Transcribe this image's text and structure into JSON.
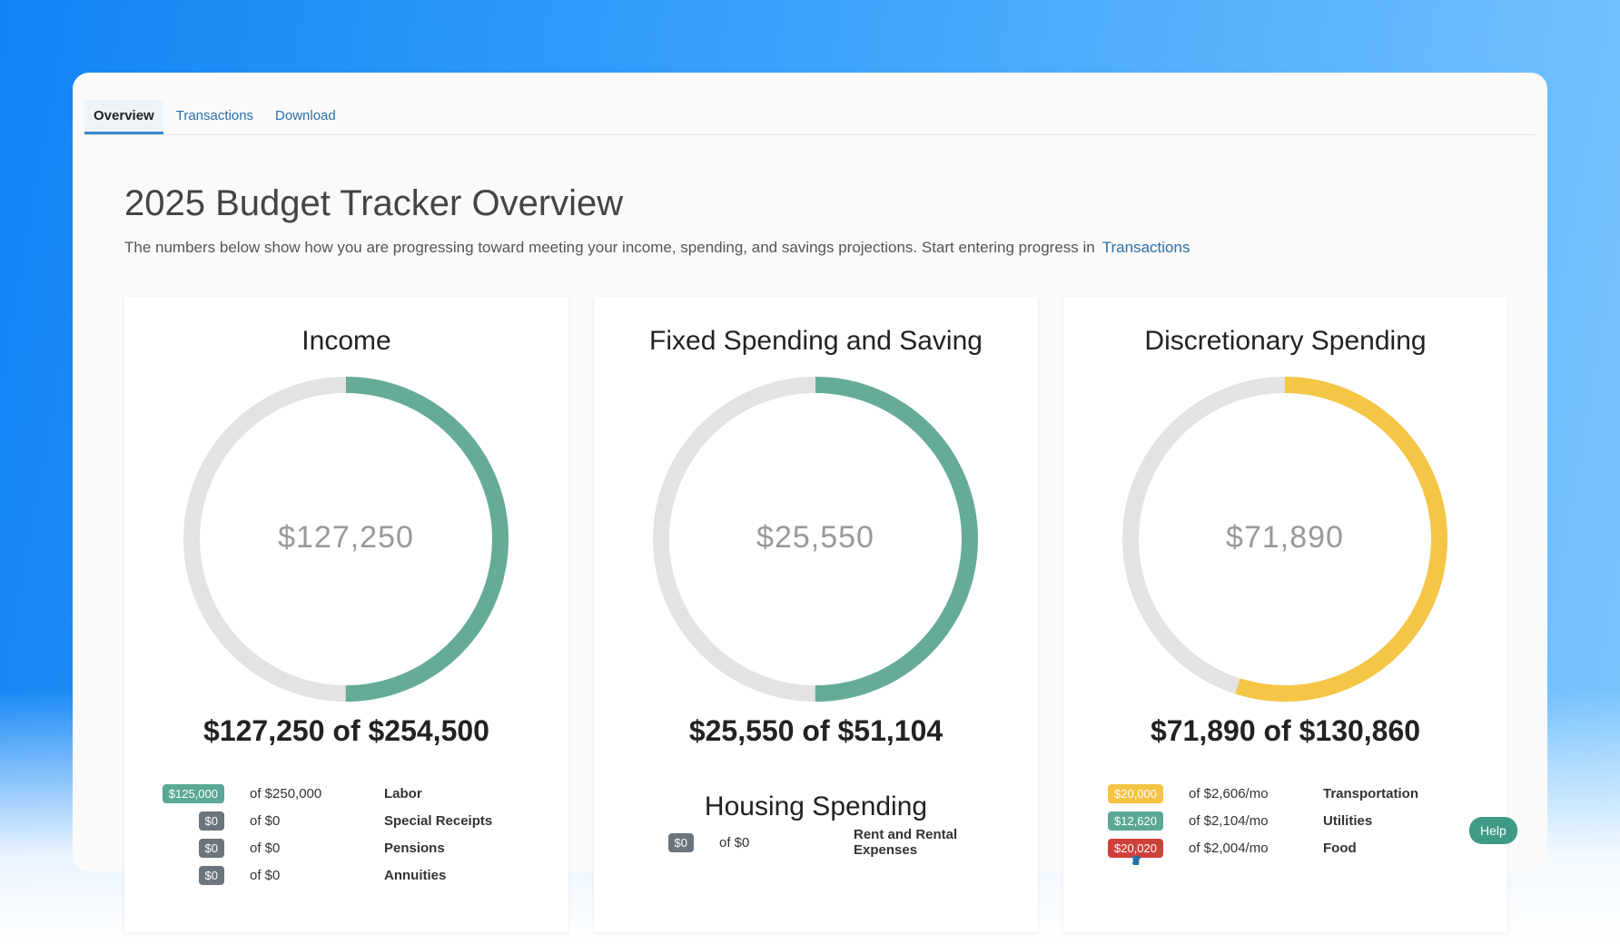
{
  "tabs": [
    "Overview",
    "Transactions",
    "Download"
  ],
  "header": {
    "title": "2025 Budget Tracker Overview",
    "description": "The numbers below show how you are progressing toward meeting your income, spending, and savings projections. Start entering progress in",
    "link": "Transactions"
  },
  "cards": [
    {
      "title": "Income",
      "color": "#65ab98",
      "amount": 127250,
      "goal": 254500,
      "center": "$127,250",
      "summary": "$127,250 of $254,500",
      "row_actions": false,
      "rows": [
        {
          "badge": "$125,000",
          "badge_color": "#5aa895",
          "target": "of $250,000",
          "label": "Labor"
        },
        {
          "badge": "$0",
          "badge_color": "#6c757d",
          "target": "of $0",
          "label": "Special Receipts"
        },
        {
          "badge": "$0",
          "badge_color": "#6c757d",
          "target": "of $0",
          "label": "Pensions"
        },
        {
          "badge": "$0",
          "badge_color": "#6c757d",
          "target": "of $0",
          "label": "Annuities"
        }
      ]
    },
    {
      "title": "Fixed Spending and Saving",
      "color": "#65ab98",
      "amount": 25550,
      "goal": 51104,
      "center": "$25,550",
      "summary": "$25,550 of $51,104",
      "row_actions": false,
      "section": "Housing Spending",
      "rows": [
        {
          "badge": "$0",
          "badge_color": "#6c757d",
          "target": "of $0",
          "label": "Rent and Rental Expenses"
        }
      ]
    },
    {
      "title": "Discretionary Spending",
      "color": "#f5c646",
      "amount": 71890,
      "goal": 130860,
      "center": "$71,890",
      "summary": "$71,890 of $130,860",
      "row_actions": true,
      "rows": [
        {
          "badge": "$20,000",
          "badge_color": "#f5c343",
          "target": "of $2,606/mo",
          "label": "Transportation"
        },
        {
          "badge": "$12,620",
          "badge_color": "#5aa895",
          "target": "of $2,104/mo",
          "label": "Utilities"
        },
        {
          "badge": "$20,020",
          "badge_color": "#d0403a",
          "target": "of $2,004/mo",
          "label": "Food"
        }
      ]
    }
  ],
  "help": "Help"
}
